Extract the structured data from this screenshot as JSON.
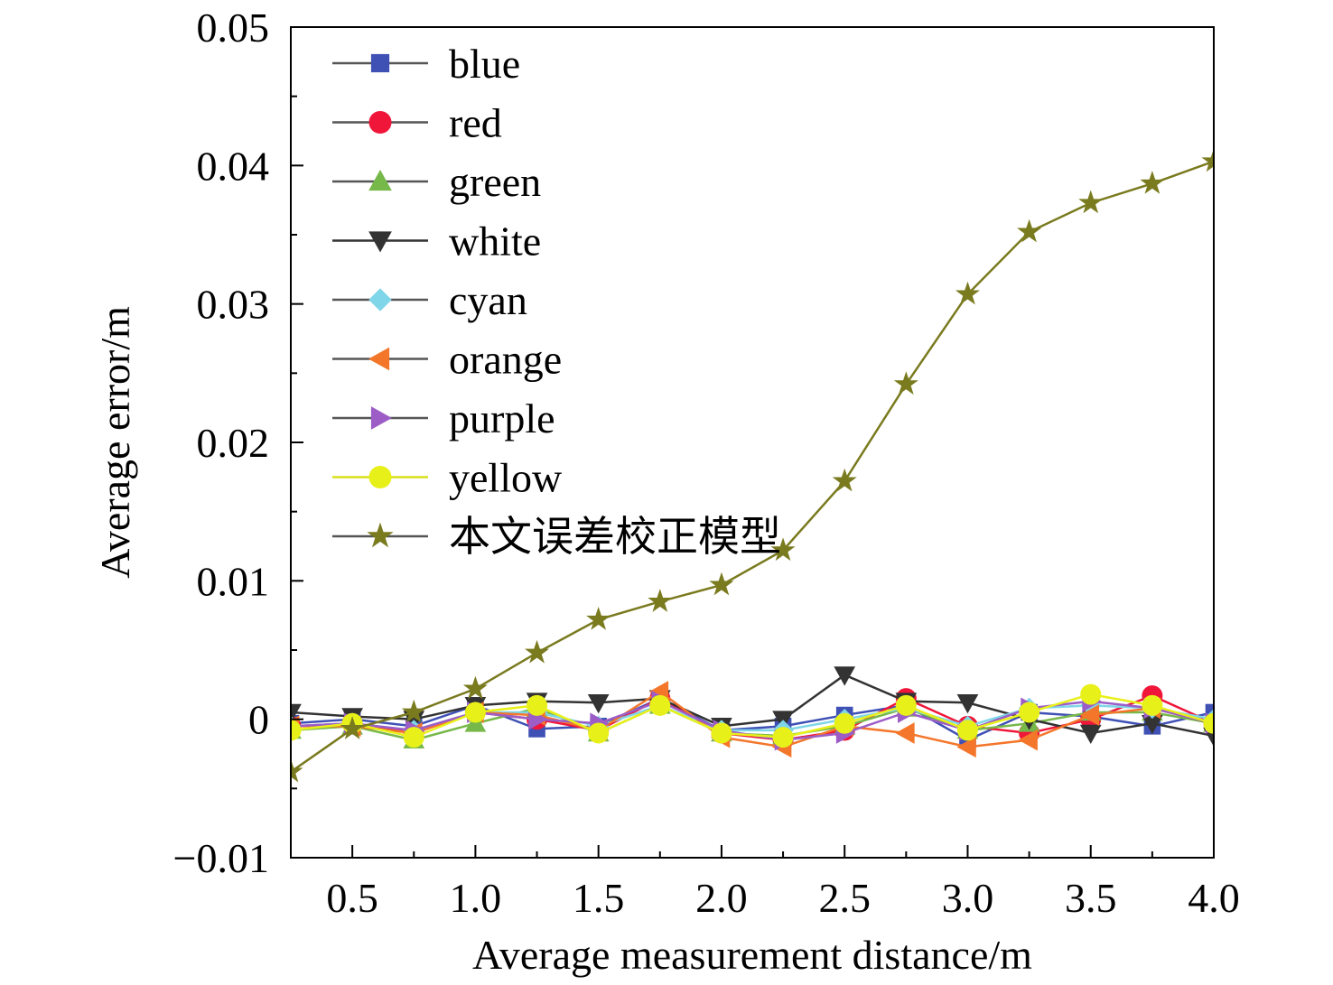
{
  "chart_data": {
    "type": "line",
    "xlabel": "Average measurement distance/m",
    "ylabel": "Average error/m",
    "xlim": [
      0.25,
      4.0
    ],
    "ylim": [
      -0.01,
      0.05
    ],
    "x_ticks": [
      "0.5",
      "1.0",
      "1.5",
      "2.0",
      "2.5",
      "3.0",
      "3.5",
      "4.0"
    ],
    "x_tick_values": [
      0.5,
      1.0,
      1.5,
      2.0,
      2.5,
      3.0,
      3.5,
      4.0
    ],
    "y_ticks": [
      "−0.01",
      "0",
      "0.01",
      "0.02",
      "0.03",
      "0.04",
      "0.05"
    ],
    "y_tick_values": [
      -0.01,
      0,
      0.01,
      0.02,
      0.03,
      0.04,
      0.05
    ],
    "grid": false,
    "legend_position": "top-left",
    "x": [
      0.25,
      0.5,
      0.75,
      1.0,
      1.25,
      1.5,
      1.75,
      2.0,
      2.25,
      2.5,
      2.75,
      3.0,
      3.25,
      3.5,
      3.75,
      4.0
    ],
    "series": [
      {
        "name": "blue",
        "color": "#3f51b5",
        "marker": "square",
        "values": [
          -0.0003,
          0.0,
          -0.0005,
          0.001,
          -0.0007,
          -0.0005,
          0.0015,
          -0.0008,
          -0.0005,
          0.0003,
          0.001,
          -0.0015,
          0.0005,
          0.0002,
          -0.0005,
          0.0005
        ]
      },
      {
        "name": "red",
        "color": "#f0163a",
        "marker": "circle",
        "values": [
          -0.0005,
          -0.0003,
          -0.001,
          0.0005,
          0.0,
          -0.0008,
          0.0015,
          -0.001,
          -0.0015,
          -0.0008,
          0.0015,
          -0.0005,
          -0.001,
          0.0,
          0.0017,
          -0.0003
        ]
      },
      {
        "name": "green",
        "color": "#77b84a",
        "marker": "triangle-up",
        "values": [
          -0.0008,
          -0.0005,
          -0.0015,
          -0.0003,
          0.0008,
          -0.001,
          0.001,
          -0.001,
          -0.0012,
          -0.0005,
          0.0008,
          -0.0008,
          -0.0003,
          0.0005,
          0.0005,
          -0.0003
        ]
      },
      {
        "name": "white",
        "color": "#333333",
        "marker": "triangle-down",
        "values": [
          0.0005,
          0.0002,
          0.0,
          0.001,
          0.0013,
          0.0012,
          0.0015,
          -0.0005,
          0.0,
          0.0032,
          0.0013,
          0.0012,
          0.0,
          -0.001,
          -0.0003,
          -0.0012
        ]
      },
      {
        "name": "cyan",
        "color": "#7fd6e8",
        "marker": "diamond",
        "values": [
          -0.0005,
          -0.0003,
          -0.0008,
          0.0005,
          0.0005,
          -0.0005,
          0.001,
          -0.0008,
          -0.0008,
          0.0,
          0.0008,
          -0.0005,
          0.0008,
          0.001,
          0.0008,
          0.0
        ]
      },
      {
        "name": "orange",
        "color": "#f4762a",
        "marker": "triangle-left",
        "values": [
          -0.0005,
          -0.0005,
          -0.001,
          0.0005,
          0.0003,
          -0.0008,
          0.002,
          -0.0013,
          -0.002,
          -0.0005,
          -0.001,
          -0.002,
          -0.0015,
          0.0003,
          0.0008,
          -0.0003
        ]
      },
      {
        "name": "purple",
        "color": "#9c5dc7",
        "marker": "triangle-right",
        "values": [
          -0.0005,
          -0.0003,
          -0.0008,
          0.0005,
          0.0,
          -0.0003,
          0.0013,
          -0.0008,
          -0.0015,
          -0.001,
          0.0005,
          -0.0008,
          0.0008,
          0.0013,
          0.0008,
          -0.0003
        ]
      },
      {
        "name": "yellow",
        "color": "#e8f01a",
        "marker": "circle",
        "values": [
          -0.0008,
          -0.0003,
          -0.0013,
          0.0005,
          0.001,
          -0.001,
          0.001,
          -0.001,
          -0.0013,
          -0.0003,
          0.001,
          -0.0008,
          0.0005,
          0.0018,
          0.001,
          -0.0003
        ]
      },
      {
        "name": "本文误差校正模型",
        "color": "#7a7a1f",
        "marker": "star",
        "values": [
          -0.0038,
          -0.0007,
          0.0005,
          0.0022,
          0.0048,
          0.0072,
          0.0085,
          0.0097,
          0.0122,
          0.0172,
          0.0242,
          0.0307,
          0.0352,
          0.0373,
          0.0387,
          0.0403
        ]
      }
    ]
  }
}
